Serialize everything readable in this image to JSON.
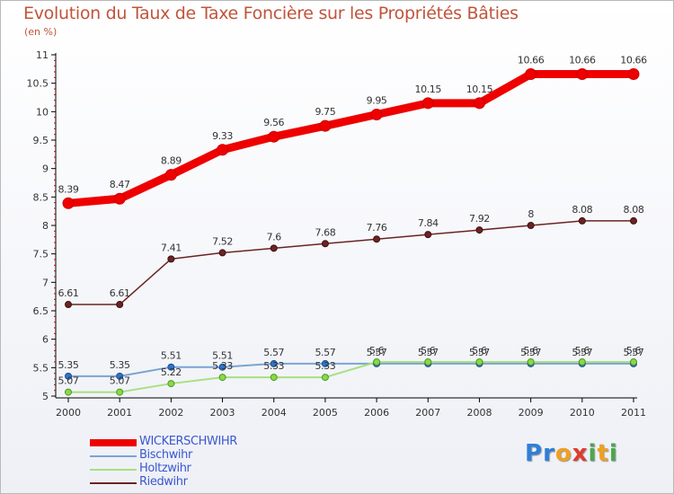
{
  "title": "Evolution du Taux de Taxe Foncière sur les Propriétés Bâties",
  "subtitle": "(en %)",
  "logo": {
    "text": "Proxiti",
    "letters": [
      {
        "ch": "P",
        "color": "#2f7fd8"
      },
      {
        "ch": "r",
        "color": "#2f7fd8"
      },
      {
        "ch": "o",
        "color": "#f0a020"
      },
      {
        "ch": "x",
        "color": "#e03a2a"
      },
      {
        "ch": "i",
        "color": "#49a84c"
      },
      {
        "ch": "t",
        "color": "#f0a020"
      },
      {
        "ch": "i",
        "color": "#49a84c"
      }
    ]
  },
  "chart_data": {
    "type": "line",
    "title": "Evolution du Taux de Taxe Foncière sur les Propriétés Bâties",
    "ylabel": "(en %)",
    "xlabel": "",
    "x": [
      "2000",
      "2001",
      "2002",
      "2003",
      "2004",
      "2005",
      "2006",
      "2007",
      "2008",
      "2009",
      "2010",
      "2011"
    ],
    "ylim": [
      5,
      11
    ],
    "yticks": [
      "5",
      "5.5",
      "6",
      "6.5",
      "7",
      "7.5",
      "8",
      "8.5",
      "9",
      "9.5",
      "10",
      "10.5",
      "11"
    ],
    "series": [
      {
        "name": "WICKERSCHWIHR",
        "color": "#ee0000",
        "width": 9,
        "marker": "#ee0000",
        "markerStroke": "#cc0000",
        "radius": 6,
        "values": [
          8.39,
          8.47,
          8.89,
          9.33,
          9.56,
          9.75,
          9.95,
          10.15,
          10.15,
          10.66,
          10.66,
          10.66
        ],
        "labels": [
          "8.39",
          "8.47",
          "8.89",
          "9.33",
          "9.56",
          "9.75",
          "9.95",
          "10.15",
          "10.15",
          "10.66",
          "10.66",
          "10.66"
        ]
      },
      {
        "name": "Bischwihr",
        "color": "#7ba3d3",
        "width": 2,
        "marker": "#2f74c9",
        "markerStroke": "#1f4f8a",
        "radius": 3.5,
        "values": [
          5.35,
          5.35,
          5.51,
          5.51,
          5.57,
          5.57,
          5.57,
          5.57,
          5.57,
          5.57,
          5.57,
          5.57
        ],
        "labels": [
          "5.35",
          "5.35",
          "5.51",
          "5.51",
          "5.57",
          "5.57",
          "5.57",
          "5.57",
          "5.57",
          "5.57",
          "5.57",
          "5.57"
        ]
      },
      {
        "name": "Holtzwihr",
        "color": "#a8e080",
        "width": 2,
        "marker": "#8ad84a",
        "markerStroke": "#4a9a20",
        "radius": 3.5,
        "values": [
          5.07,
          5.07,
          5.22,
          5.33,
          5.33,
          5.33,
          5.6,
          5.6,
          5.6,
          5.6,
          5.6,
          5.6
        ],
        "labels": [
          "5.07",
          "5.07",
          "5.22",
          "5.33",
          "5.33",
          "5.33",
          "5.6",
          "5.6",
          "5.6",
          "5.6",
          "5.6",
          "5.6"
        ]
      },
      {
        "name": "Riedwihr",
        "color": "#6b2323",
        "width": 1.5,
        "marker": "#6b2323",
        "markerStroke": "#3e1010",
        "radius": 3.5,
        "values": [
          6.61,
          6.61,
          7.41,
          7.52,
          7.6,
          7.68,
          7.76,
          7.84,
          7.92,
          8,
          8.08,
          8.08
        ],
        "labels": [
          "6.61",
          "6.61",
          "7.41",
          "7.52",
          "7.6",
          "7.68",
          "7.76",
          "7.84",
          "7.92",
          "8",
          "8.08",
          "8.08"
        ]
      }
    ],
    "legend": [
      "WICKERSCHWIHR",
      "Bischwihr",
      "Holtzwihr",
      "Riedwihr"
    ],
    "legend_position": "bottom-left",
    "grid": false
  }
}
